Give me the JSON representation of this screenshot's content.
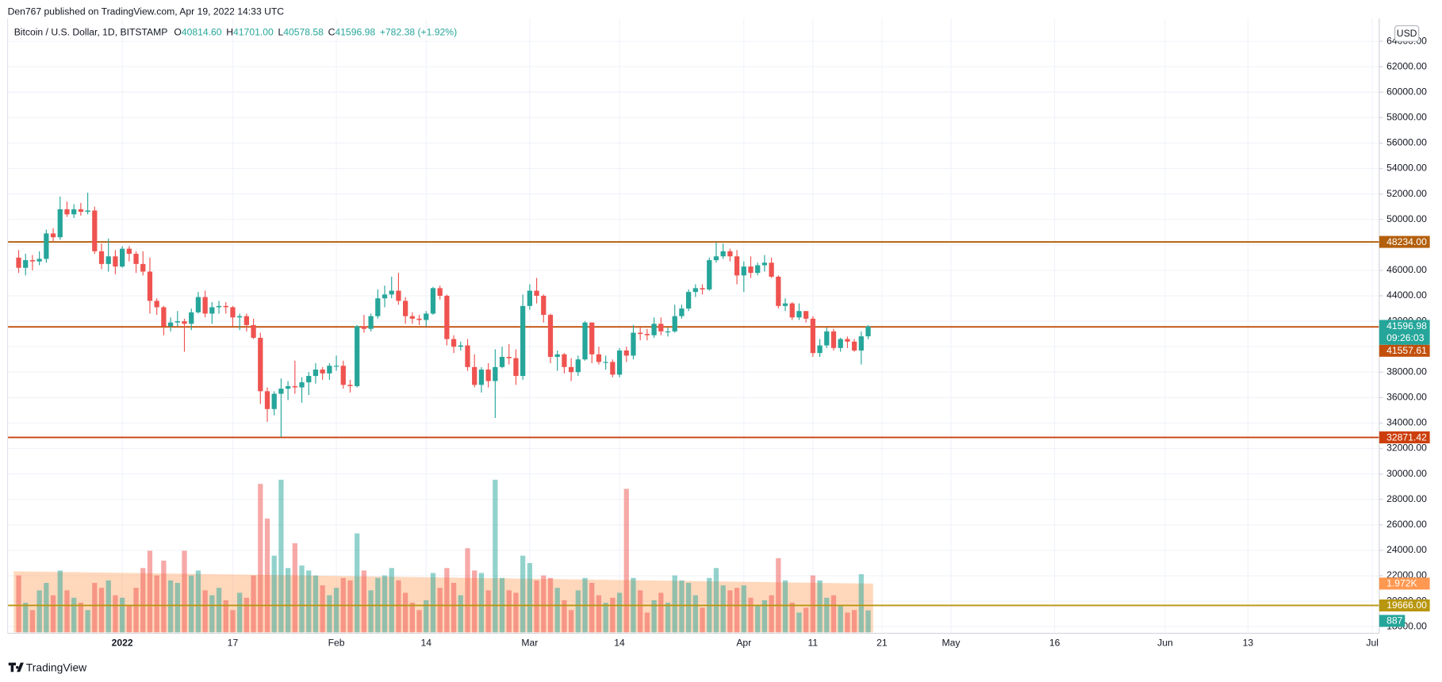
{
  "header": {
    "publisher": "Den767 published on TradingView.com, Apr 19, 2022 14:33 UTC"
  },
  "legend": {
    "symbol": "Bitcoin / U.S. Dollar, 1D, BITSTAMP",
    "fields": [
      {
        "key": "O",
        "text": "40814.60"
      },
      {
        "key": "H",
        "text": "41701.00"
      },
      {
        "key": "L",
        "text": "40578.58"
      },
      {
        "key": "C",
        "text": "41596.98"
      }
    ],
    "change": "+782.38 (+1.92%)"
  },
  "currency_button": "USD",
  "footer": "TradingView",
  "chart_data": {
    "type": "candlestick",
    "up_color": "#26a69a",
    "down_color": "#ef5350",
    "x": [
      -15,
      -14,
      -13,
      -12,
      -11,
      -10,
      -9,
      -8,
      -7,
      -6,
      -5,
      -4,
      -3,
      -2,
      -1,
      0,
      1,
      2,
      3,
      4,
      5,
      6,
      7,
      8,
      9,
      10,
      11,
      12,
      13,
      14,
      15,
      16,
      17,
      18,
      19,
      20,
      21,
      22,
      23,
      24,
      25,
      26,
      27,
      28,
      29,
      30,
      31,
      32,
      33,
      34,
      35,
      36,
      37,
      38,
      39,
      40,
      41,
      42,
      43,
      44,
      45,
      46,
      47,
      48,
      49,
      50,
      51,
      52,
      53,
      54,
      55,
      56,
      57,
      58,
      59,
      60,
      61,
      62,
      63,
      64,
      65,
      66,
      67,
      68,
      69,
      70,
      71,
      72,
      73,
      74,
      75,
      76,
      77,
      78,
      79,
      80,
      81,
      82,
      83,
      84,
      85,
      86,
      87,
      88,
      89,
      90,
      91,
      92,
      93,
      94,
      95,
      96,
      97,
      98,
      99,
      100,
      101,
      102,
      103,
      104,
      105,
      106,
      107,
      108
    ],
    "open": [
      47000,
      46200,
      46800,
      46700,
      46900,
      48900,
      48600,
      50800,
      50400,
      50800,
      50600,
      50700,
      47500,
      46500,
      47100,
      46300,
      47700,
      47300,
      46500,
      45900,
      43600,
      43100,
      41600,
      41900,
      42000,
      41800,
      42700,
      43900,
      42600,
      43100,
      43200,
      43100,
      42300,
      42400,
      41700,
      40700,
      36500,
      35100,
      36300,
      36700,
      36900,
      36800,
      37200,
      37700,
      38200,
      37900,
      38500,
      38500,
      37000,
      36900,
      41600,
      41400,
      42400,
      43800,
      44100,
      44400,
      43600,
      42400,
      42200,
      42100,
      42600,
      44600,
      44000,
      40600,
      40000,
      40100,
      38400,
      37000,
      38200,
      37300,
      38400,
      39200,
      39100,
      37700,
      43200,
      44400,
      44000,
      42500,
      39200,
      39400,
      38400,
      38000,
      39000,
      41900,
      39400,
      38800,
      38800,
      37800,
      39700,
      39300,
      41100,
      41000,
      40900,
      41800,
      41200,
      41200,
      42400,
      43000,
      44300,
      44600,
      44500,
      46800,
      47100,
      47500,
      47100,
      45600,
      46300,
      45800,
      46400,
      46600,
      45500,
      43200,
      43400,
      42300,
      42800,
      42200,
      39500,
      40100,
      41200,
      39900,
      40600,
      40400,
      39700,
      40814.6
    ],
    "high": [
      47600,
      47300,
      47200,
      47500,
      49200,
      49300,
      51800,
      51400,
      51200,
      51300,
      52100,
      51000,
      48100,
      48500,
      47600,
      47900,
      47900,
      47500,
      47500,
      47000,
      43800,
      43200,
      42300,
      42800,
      42200,
      43000,
      44300,
      44400,
      43500,
      43600,
      43500,
      43200,
      42600,
      42600,
      42200,
      41100,
      36800,
      36500,
      37500,
      37300,
      38900,
      37600,
      38000,
      38700,
      38400,
      38700,
      39300,
      38900,
      37400,
      41700,
      42500,
      42600,
      44500,
      44800,
      45500,
      45800,
      43900,
      42700,
      42500,
      42800,
      44700,
      44800,
      44100,
      40900,
      40400,
      40600,
      39400,
      38400,
      38700,
      39800,
      40000,
      40200,
      39800,
      44100,
      44900,
      45400,
      44100,
      42600,
      39700,
      39500,
      39100,
      39300,
      42000,
      41900,
      40000,
      39300,
      39000,
      39900,
      40000,
      41700,
      41500,
      41400,
      42300,
      42300,
      41500,
      43300,
      43300,
      44500,
      44900,
      44900,
      47000,
      48200,
      48100,
      47700,
      47600,
      46700,
      47100,
      46600,
      47200,
      47000,
      45600,
      43800,
      43500,
      43400,
      42800,
      42400,
      40600,
      41500,
      41400,
      40700,
      40800,
      40600,
      41200,
      41701
    ],
    "low": [
      45800,
      45600,
      46000,
      46400,
      46600,
      48300,
      48400,
      50200,
      50100,
      50300,
      50400,
      47300,
      46100,
      45900,
      45700,
      46200,
      46700,
      45800,
      45600,
      42600,
      42500,
      40900,
      41200,
      41600,
      39600,
      41300,
      42600,
      42300,
      41800,
      42600,
      42600,
      41600,
      41300,
      41200,
      40600,
      35500,
      34100,
      34600,
      32900,
      35800,
      36300,
      35600,
      36200,
      37100,
      37400,
      37400,
      38100,
      36700,
      36400,
      36800,
      41100,
      41200,
      42200,
      43100,
      43800,
      43300,
      41800,
      41800,
      41700,
      41600,
      42500,
      43700,
      40100,
      39500,
      39700,
      38100,
      36800,
      36400,
      36800,
      34400,
      38300,
      38600,
      37000,
      37400,
      42900,
      43400,
      41900,
      38700,
      38100,
      37900,
      37300,
      37700,
      38900,
      38700,
      38600,
      38200,
      37600,
      37600,
      38800,
      39000,
      40500,
      40500,
      40700,
      40900,
      40800,
      41100,
      42200,
      42800,
      43900,
      44100,
      44400,
      46600,
      46900,
      46700,
      44900,
      44300,
      45400,
      45600,
      45900,
      45400,
      43000,
      42800,
      42100,
      42100,
      41900,
      39200,
      39200,
      39900,
      39700,
      39600,
      39900,
      39600,
      38600,
      40578.58
    ],
    "close": [
      46200,
      46800,
      46700,
      46900,
      48900,
      48600,
      50800,
      50400,
      50800,
      50600,
      50700,
      47500,
      46500,
      47100,
      46300,
      47700,
      47300,
      46500,
      45900,
      43600,
      43100,
      41600,
      41900,
      42000,
      41800,
      42700,
      43900,
      42600,
      43100,
      43200,
      43100,
      42300,
      42400,
      41700,
      40700,
      36500,
      35100,
      36300,
      36700,
      36900,
      36800,
      37200,
      37700,
      38200,
      37900,
      38500,
      38500,
      37000,
      36900,
      41600,
      41400,
      42400,
      43800,
      44100,
      44400,
      43600,
      42400,
      42200,
      42100,
      42600,
      44600,
      44000,
      40600,
      40000,
      40100,
      38400,
      37000,
      38200,
      37300,
      38400,
      39200,
      39100,
      37700,
      43200,
      44400,
      44000,
      42500,
      39200,
      39400,
      38400,
      38000,
      39000,
      41900,
      39400,
      38800,
      38800,
      37800,
      39700,
      39300,
      41100,
      41000,
      40900,
      41800,
      41200,
      41200,
      42400,
      43000,
      44300,
      44600,
      44500,
      46800,
      47100,
      47500,
      47100,
      45600,
      46300,
      45800,
      46400,
      46600,
      45500,
      43200,
      43400,
      42300,
      42800,
      42200,
      39500,
      40100,
      41200,
      39900,
      40600,
      40400,
      39700,
      40814.6,
      41596.98
    ],
    "last_label": "41596.98",
    "countdown": "09:26:03",
    "volume": {
      "ylim": [
        0,
        6500
      ],
      "ma_color": "#ff9850",
      "values": [
        2300,
        1200,
        900,
        1700,
        2000,
        1500,
        2500,
        1700,
        1400,
        1200,
        900,
        2000,
        1800,
        2100,
        1500,
        1400,
        1100,
        1800,
        2600,
        3300,
        2300,
        2900,
        2100,
        2000,
        3300,
        2300,
        2500,
        1700,
        1500,
        1800,
        1300,
        900,
        1600,
        1400,
        2300,
        6000,
        4600,
        3100,
        6170,
        2600,
        3600,
        2700,
        2500,
        2300,
        1900,
        1500,
        1800,
        2200,
        2100,
        4000,
        2500,
        1700,
        2200,
        2300,
        2600,
        2100,
        1600,
        1200,
        900,
        1300,
        2400,
        1800,
        2600,
        2000,
        1500,
        3400,
        2500,
        2400,
        1700,
        6170,
        2200,
        1700,
        1600,
        3100,
        2800,
        2100,
        2300,
        2200,
        1800,
        1300,
        900,
        1700,
        2200,
        2000,
        1500,
        1200,
        1400,
        1600,
        5800,
        2200,
        1700,
        800,
        1300,
        1600,
        1200,
        2300,
        2100,
        2000,
        1500,
        1000,
        2200,
        2600,
        1900,
        1700,
        1800,
        1900,
        1400,
        1100,
        1300,
        1500,
        3000,
        2100,
        1200,
        800,
        1000,
        2300,
        2100,
        1400,
        1500,
        1100,
        800,
        900,
        2350,
        887
      ],
      "ma": [
        2464,
        2460,
        2456,
        2452,
        2448,
        2444,
        2440,
        2436,
        2432,
        2428,
        2424,
        2420,
        2416,
        2412,
        2408,
        2404,
        2400,
        2396,
        2392,
        2388,
        2384,
        2380,
        2376,
        2372,
        2368,
        2364,
        2360,
        2356,
        2352,
        2348,
        2344,
        2340,
        2336,
        2332,
        2328,
        2324,
        2320,
        2316,
        2312,
        2308,
        2304,
        2300,
        2296,
        2292,
        2288,
        2284,
        2280,
        2276,
        2272,
        2268,
        2264,
        2260,
        2256,
        2252,
        2248,
        2244,
        2240,
        2236,
        2232,
        2228,
        2224,
        2220,
        2216,
        2212,
        2208,
        2204,
        2200,
        2196,
        2192,
        2188,
        2184,
        2180,
        2176,
        2172,
        2168,
        2164,
        2160,
        2156,
        2152,
        2148,
        2144,
        2140,
        2136,
        2132,
        2128,
        2124,
        2120,
        2116,
        2112,
        2108,
        2104,
        2100,
        2096,
        2092,
        2088,
        2084,
        2080,
        2076,
        2072,
        2068,
        2064,
        2060,
        2056,
        2052,
        2048,
        2044,
        2040,
        2036,
        2032,
        2028,
        2024,
        2020,
        2016,
        2012,
        2008,
        2004,
        2000,
        1996,
        1992,
        1988,
        1984,
        1980,
        1976,
        1972
      ],
      "last_label": "887",
      "ma_last_label": "1.972K"
    },
    "levels": [
      {
        "value": 48234,
        "label": "48234.00",
        "color": "#b35f0c"
      },
      {
        "value": 41557.61,
        "label": "41557.61",
        "color": "#c2500c"
      },
      {
        "value": 32871.42,
        "label": "32871.42",
        "color": "#cc3f0c"
      },
      {
        "value": 19666,
        "label": "19666.00",
        "color": "#b8960e"
      }
    ],
    "xlim": [
      -16.6,
      182
    ],
    "xticks": [
      {
        "value": 0,
        "label": "2022"
      },
      {
        "value": 16,
        "label": "17"
      },
      {
        "value": 31,
        "label": "Feb"
      },
      {
        "value": 44,
        "label": "14"
      },
      {
        "value": 59,
        "label": "Mar"
      },
      {
        "value": 72,
        "label": "14"
      },
      {
        "value": 90,
        "label": "Apr"
      },
      {
        "value": 100,
        "label": "11"
      },
      {
        "value": 110,
        "label": "21"
      },
      {
        "value": 120,
        "label": "May"
      },
      {
        "value": 135,
        "label": "16"
      },
      {
        "value": 151,
        "label": "Jun"
      },
      {
        "value": 163,
        "label": "13"
      },
      {
        "value": 181,
        "label": "Jul"
      }
    ],
    "ylim": [
      17550,
      65800
    ],
    "yticks": [
      {
        "value": 18000,
        "label": "18000.00"
      },
      {
        "value": 20000,
        "label": "20000.00"
      },
      {
        "value": 22000,
        "label": "22000.00"
      },
      {
        "value": 24000,
        "label": "24000.00"
      },
      {
        "value": 26000,
        "label": "26000.00"
      },
      {
        "value": 28000,
        "label": "28000.00"
      },
      {
        "value": 30000,
        "label": "30000.00"
      },
      {
        "value": 32000,
        "label": "32000.00"
      },
      {
        "value": 34000,
        "label": "34000.00"
      },
      {
        "value": 36000,
        "label": "36000.00"
      },
      {
        "value": 38000,
        "label": "38000.00"
      },
      {
        "value": 40000,
        "label": "40000.00"
      },
      {
        "value": 42000,
        "label": "42000.00"
      },
      {
        "value": 44000,
        "label": "44000.00"
      },
      {
        "value": 46000,
        "label": "46000.00"
      },
      {
        "value": 48000,
        "label": "48000.00"
      },
      {
        "value": 50000,
        "label": "50000.00"
      },
      {
        "value": 52000,
        "label": "52000.00"
      },
      {
        "value": 54000,
        "label": "54000.00"
      },
      {
        "value": 56000,
        "label": "56000.00"
      },
      {
        "value": 58000,
        "label": "58000.00"
      },
      {
        "value": 60000,
        "label": "60000.00"
      },
      {
        "value": 62000,
        "label": "62000.00"
      },
      {
        "value": 64000,
        "label": "64000.00"
      }
    ],
    "grid": true
  }
}
